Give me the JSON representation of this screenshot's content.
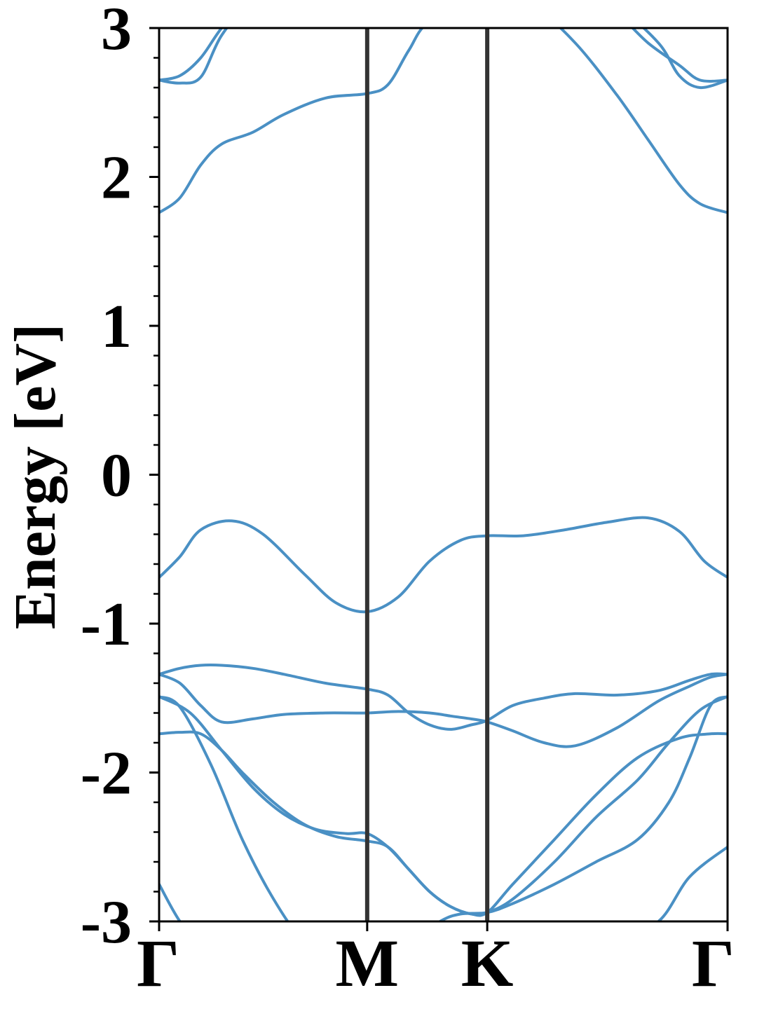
{
  "chart_data": {
    "type": "line",
    "title": "",
    "ylabel": "Energy [eV]",
    "xlabel": "",
    "ylim": [
      -3,
      3
    ],
    "yticks": [
      -3,
      -2,
      -1,
      0,
      1,
      2,
      3
    ],
    "ytick_labels": [
      "-3",
      "-2",
      "-1",
      "0",
      "1",
      "2",
      "3"
    ],
    "xlim": [
      0,
      2.732
    ],
    "xticks": [
      0,
      1.0,
      1.577,
      2.732
    ],
    "xtick_labels": [
      "Γ",
      "M",
      "K",
      "Γ"
    ],
    "high_symmetry_lines": [
      1.0,
      1.577
    ],
    "grid": false,
    "legend": "none",
    "colors": {
      "bands": "#4a90c4",
      "symmetry_lines": "#333333",
      "axes": "#000000"
    },
    "series": [
      {
        "x": [
          0,
          0.1,
          0.22,
          0.35,
          0.5,
          0.65,
          0.8,
          1.0,
          1.2,
          1.4,
          1.577,
          1.8,
          2.0,
          2.2,
          2.4,
          2.55,
          2.732
        ],
        "y": [
          -2.75,
          -3.0,
          -3.2,
          -3.3,
          -3.35,
          -3.3,
          -3.1,
          -3.4,
          -3.2,
          -3.1,
          -3.05,
          -3.1,
          -3.2,
          -3.1,
          -3.0,
          -2.7,
          -2.5
        ]
      },
      {
        "x": [
          0,
          0.1,
          0.25,
          0.4,
          0.55,
          0.7,
          0.85,
          1.0,
          1.1,
          1.2,
          1.35,
          1.45,
          1.577,
          1.7,
          1.9,
          2.1,
          2.3,
          2.45,
          2.55,
          2.65,
          2.732
        ],
        "y": [
          -1.49,
          -1.56,
          -1.95,
          -2.45,
          -2.85,
          -3.15,
          -3.3,
          -3.35,
          -3.3,
          -3.15,
          -3.0,
          -2.95,
          -2.94,
          -2.88,
          -2.75,
          -2.6,
          -2.45,
          -2.2,
          -1.9,
          -1.55,
          -1.49
        ]
      },
      {
        "x": [
          0,
          0.15,
          0.3,
          0.45,
          0.6,
          0.75,
          0.9,
          1.0,
          1.1,
          1.2,
          1.3,
          1.4,
          1.5,
          1.577,
          1.7,
          1.9,
          2.1,
          2.3,
          2.45,
          2.6,
          2.732
        ],
        "y": [
          -1.49,
          -1.6,
          -1.85,
          -2.1,
          -2.28,
          -2.38,
          -2.41,
          -2.41,
          -2.5,
          -2.65,
          -2.8,
          -2.9,
          -2.95,
          -2.94,
          -2.85,
          -2.6,
          -2.3,
          -2.05,
          -1.8,
          -1.58,
          -1.49
        ]
      },
      {
        "x": [
          0,
          0.1,
          0.2,
          0.3,
          0.4,
          0.55,
          0.7,
          0.85,
          1.0,
          1.1,
          1.2,
          1.3,
          1.4,
          1.5,
          1.577,
          1.7,
          1.9,
          2.1,
          2.3,
          2.5,
          2.65,
          2.732
        ],
        "y": [
          -1.74,
          -1.73,
          -1.74,
          -1.85,
          -2.0,
          -2.2,
          -2.35,
          -2.43,
          -2.46,
          -2.5,
          -2.65,
          -2.8,
          -2.9,
          -2.95,
          -2.94,
          -2.75,
          -2.45,
          -2.15,
          -1.9,
          -1.77,
          -1.74,
          -1.74
        ]
      },
      {
        "x": [
          0,
          0.1,
          0.2,
          0.3,
          0.45,
          0.6,
          0.8,
          1.0,
          1.15,
          1.3,
          1.4,
          1.5,
          1.577,
          1.7,
          1.85,
          2.0,
          2.2,
          2.4,
          2.55,
          2.65,
          2.732
        ],
        "y": [
          -1.34,
          -1.4,
          -1.55,
          -1.66,
          -1.64,
          -1.61,
          -1.6,
          -1.6,
          -1.59,
          -1.6,
          -1.62,
          -1.64,
          -1.66,
          -1.72,
          -1.8,
          -1.82,
          -1.7,
          -1.52,
          -1.42,
          -1.36,
          -1.34
        ]
      },
      {
        "x": [
          0,
          0.1,
          0.2,
          0.3,
          0.45,
          0.6,
          0.8,
          1.0,
          1.1,
          1.2,
          1.3,
          1.4,
          1.5,
          1.577,
          1.7,
          1.85,
          2.0,
          2.2,
          2.4,
          2.55,
          2.65,
          2.732
        ],
        "y": [
          -1.34,
          -1.3,
          -1.28,
          -1.28,
          -1.3,
          -1.34,
          -1.4,
          -1.44,
          -1.48,
          -1.6,
          -1.68,
          -1.71,
          -1.68,
          -1.65,
          -1.55,
          -1.5,
          -1.47,
          -1.48,
          -1.45,
          -1.38,
          -1.34,
          -1.34
        ]
      },
      {
        "x": [
          0,
          0.1,
          0.2,
          0.35,
          0.5,
          0.7,
          0.85,
          1.0,
          1.15,
          1.3,
          1.45,
          1.577,
          1.75,
          1.95,
          2.15,
          2.35,
          2.5,
          2.62,
          2.732
        ],
        "y": [
          -0.69,
          -0.55,
          -0.37,
          -0.31,
          -0.4,
          -0.67,
          -0.86,
          -0.92,
          -0.82,
          -0.58,
          -0.44,
          -0.41,
          -0.41,
          -0.37,
          -0.32,
          -0.29,
          -0.38,
          -0.58,
          -0.69
        ]
      },
      {
        "x": [
          0,
          0.1,
          0.2,
          0.3,
          0.45,
          0.6,
          0.8,
          1.0,
          1.1,
          1.2,
          1.3,
          1.577,
          1.8,
          2.0,
          2.2,
          2.35,
          2.5,
          2.6,
          2.732
        ],
        "y": [
          1.76,
          1.86,
          2.08,
          2.22,
          2.3,
          2.42,
          2.53,
          2.56,
          2.62,
          2.85,
          3.05,
          3.3,
          3.15,
          2.9,
          2.55,
          2.25,
          1.95,
          1.82,
          1.76
        ]
      },
      {
        "x": [
          0,
          0.1,
          0.2,
          0.3,
          0.45,
          0.6,
          0.8,
          1.0,
          1.2,
          1.4,
          1.577,
          1.8,
          2.0,
          2.2,
          2.4,
          2.5,
          2.6,
          2.732
        ],
        "y": [
          2.65,
          2.63,
          2.67,
          2.95,
          3.2,
          3.35,
          3.45,
          3.5,
          3.5,
          3.48,
          3.45,
          3.4,
          3.3,
          3.15,
          2.9,
          2.68,
          2.6,
          2.65
        ]
      },
      {
        "x": [
          0,
          0.1,
          0.2,
          0.3,
          0.45,
          0.6,
          0.8,
          1.0,
          1.2,
          1.4,
          1.577,
          1.8,
          2.0,
          2.2,
          2.35,
          2.5,
          2.6,
          2.732
        ],
        "y": [
          2.65,
          2.68,
          2.8,
          3.0,
          3.25,
          3.4,
          3.5,
          3.55,
          3.55,
          3.5,
          3.45,
          3.4,
          3.3,
          3.1,
          2.9,
          2.75,
          2.65,
          2.65
        ]
      }
    ]
  }
}
